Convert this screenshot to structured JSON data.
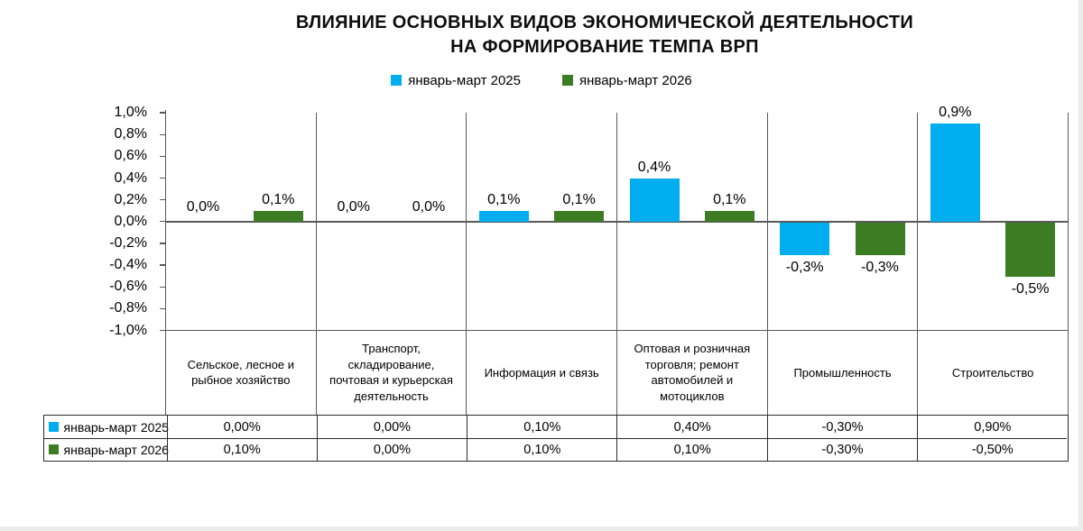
{
  "title": {
    "line1": "ВЛИЯНИЕ ОСНОВНЫХ ВИДОВ ЭКОНОМИЧЕСКОЙ ДЕЯТЕЛЬНОСТИ",
    "line2": "НА ФОРМИРОВАНИЕ ТЕМПА ВРП"
  },
  "legend": {
    "items": [
      {
        "label": "январь-март 2025",
        "color": "#00AEF0"
      },
      {
        "label": "январь-март 2026",
        "color": "#3C7D23"
      }
    ]
  },
  "chart_data": {
    "type": "bar",
    "title": "ВЛИЯНИЕ ОСНОВНЫХ ВИДОВ ЭКОНОМИЧЕСКОЙ ДЕЯТЕЛЬНОСТИ НА ФОРМИРОВАНИЕ ТЕМПА ВРП",
    "xlabel": "",
    "ylabel": "",
    "legend_position": "top",
    "grid": "category-dividers-only",
    "categories": [
      "Сельское, лесное и рыбное хозяйство",
      "Транспорт, складирование, почтовая и курьерская деятельность",
      "Информация и связь",
      "Оптовая и розничная торговля; ремонт автомобилей и мотоциклов",
      "Промышленность",
      "Строительство"
    ],
    "series": [
      {
        "name": "январь-март 2025",
        "color": "#00AEF0",
        "values": [
          0.0,
          0.0,
          0.1,
          0.4,
          -0.3,
          0.9
        ],
        "bar_labels": [
          "0,0%",
          "0,0%",
          "0,1%",
          "0,4%",
          "-0,3%",
          "0,9%"
        ],
        "table_values": [
          "0,00%",
          "0,00%",
          "0,10%",
          "0,40%",
          "-0,30%",
          "0,90%"
        ]
      },
      {
        "name": "январь-март 2026",
        "color": "#3C7D23",
        "values": [
          0.1,
          0.0,
          0.1,
          0.1,
          -0.3,
          -0.5
        ],
        "bar_labels": [
          "0,1%",
          "0,0%",
          "0,1%",
          "0,1%",
          "-0,3%",
          "-0,5%"
        ],
        "table_values": [
          "0,10%",
          "0,00%",
          "0,10%",
          "0,10%",
          "-0,30%",
          "-0,50%"
        ]
      }
    ],
    "y_axis": {
      "min": -1.0,
      "max": 1.0,
      "step": 0.2,
      "tick_labels": [
        "1,0%",
        "0,8%",
        "0,6%",
        "0,4%",
        "0,2%",
        "0,0%",
        "-0,2%",
        "-0,4%",
        "-0,6%",
        "-0,8%",
        "-1,0%"
      ]
    }
  },
  "colors": {
    "axis_line": "#595959",
    "table_border": "#2b2b2b",
    "text": "#000000",
    "window_edge": "#ececec"
  }
}
